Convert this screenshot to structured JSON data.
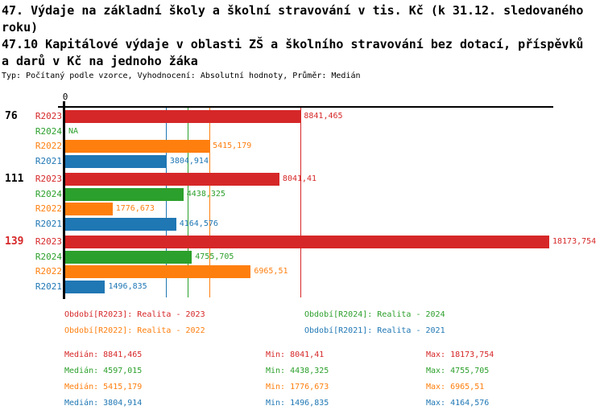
{
  "title_lines": [
    "47. Výdaje na základní školy a školní stravování v tis. Kč (k 31.12. sledovaného",
    "roku)",
    "47.10 Kapitálové výdaje v oblasti ZŠ a školního stravování bez dotací, příspěvků",
    "a darů v Kč na jednoho žáka"
  ],
  "subtitle": "Typ: Počítaný podle vzorce, Vyhodnocení: Absolutní hodnoty, Průměr: Medián",
  "colors": {
    "R2023": "#d62728",
    "R2024": "#2ca02c",
    "R2022": "#ff7f0e",
    "R2021": "#1f77b4",
    "axis": "#000000",
    "background": "#ffffff"
  },
  "chart_data": {
    "type": "bar",
    "orientation": "horizontal",
    "x_axis": {
      "zero_label": "0",
      "xmin": 0,
      "xmax": 18400,
      "grid": false
    },
    "groups": [
      {
        "label": "76",
        "label_color": "#000000",
        "bars": [
          {
            "series": "R2023",
            "value": 8841.465,
            "label": "8841,465"
          },
          {
            "series": "R2024",
            "value": null,
            "label": "NA"
          },
          {
            "series": "R2022",
            "value": 5415.179,
            "label": "5415,179"
          },
          {
            "series": "R2021",
            "value": 3804.914,
            "label": "3804,914"
          }
        ]
      },
      {
        "label": "111",
        "label_color": "#000000",
        "bars": [
          {
            "series": "R2023",
            "value": 8041.41,
            "label": "8041,41"
          },
          {
            "series": "R2024",
            "value": 4438.325,
            "label": "4438,325"
          },
          {
            "series": "R2022",
            "value": 1776.673,
            "label": "1776,673"
          },
          {
            "series": "R2021",
            "value": 4164.576,
            "label": "4164,576"
          }
        ]
      },
      {
        "label": "139",
        "label_color": "#d62728",
        "bars": [
          {
            "series": "R2023",
            "value": 18173.754,
            "label": "18173,754"
          },
          {
            "series": "R2024",
            "value": 4755.705,
            "label": "4755,705"
          },
          {
            "series": "R2022",
            "value": 6965.51,
            "label": "6965,51"
          },
          {
            "series": "R2021",
            "value": 1496.835,
            "label": "1496,835"
          }
        ]
      }
    ],
    "reference_lines": [
      {
        "series": "R2021",
        "value": 3804.914
      },
      {
        "series": "R2024",
        "value": 4597.015
      },
      {
        "series": "R2022",
        "value": 5415.179
      },
      {
        "series": "R2023",
        "value": 8841.465
      }
    ],
    "legend": [
      {
        "series": "R2023",
        "text": "Období[R2023]: Realita - 2023"
      },
      {
        "series": "R2024",
        "text": "Období[R2024]: Realita - 2024"
      },
      {
        "series": "R2022",
        "text": "Období[R2022]: Realita - 2022"
      },
      {
        "series": "R2021",
        "text": "Období[R2021]: Realita - 2021"
      }
    ],
    "stats": [
      {
        "series": "R2023",
        "median": "Medián: 8841,465",
        "min": "Min: 8041,41",
        "max": "Max: 18173,754"
      },
      {
        "series": "R2024",
        "median": "Medián: 4597,015",
        "min": "Min: 4438,325",
        "max": "Max: 4755,705"
      },
      {
        "series": "R2022",
        "median": "Medián: 5415,179",
        "min": "Min: 1776,673",
        "max": "Max: 6965,51"
      },
      {
        "series": "R2021",
        "median": "Medián: 3804,914",
        "min": "Min: 1496,835",
        "max": "Max: 4164,576"
      }
    ]
  }
}
